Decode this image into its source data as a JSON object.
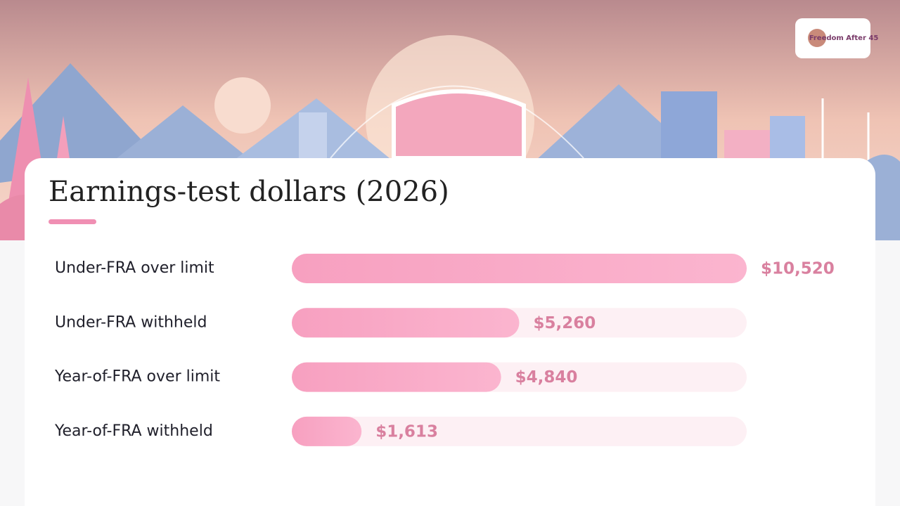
{
  "logo": "Freedom After 45",
  "chart_data": {
    "type": "bar",
    "orientation": "horizontal",
    "title": "Earnings-test dollars (2026)",
    "categories": [
      "Under-FRA over limit",
      "Under-FRA withheld",
      "Year-of-FRA over limit",
      "Year-of-FRA withheld"
    ],
    "values": [
      10520,
      5260,
      4840,
      1613
    ],
    "value_labels": [
      "$10,520",
      "$5,260",
      "$4,840",
      "$1,613"
    ],
    "xlim": [
      0,
      10520
    ],
    "color": "#f7a3c3"
  }
}
